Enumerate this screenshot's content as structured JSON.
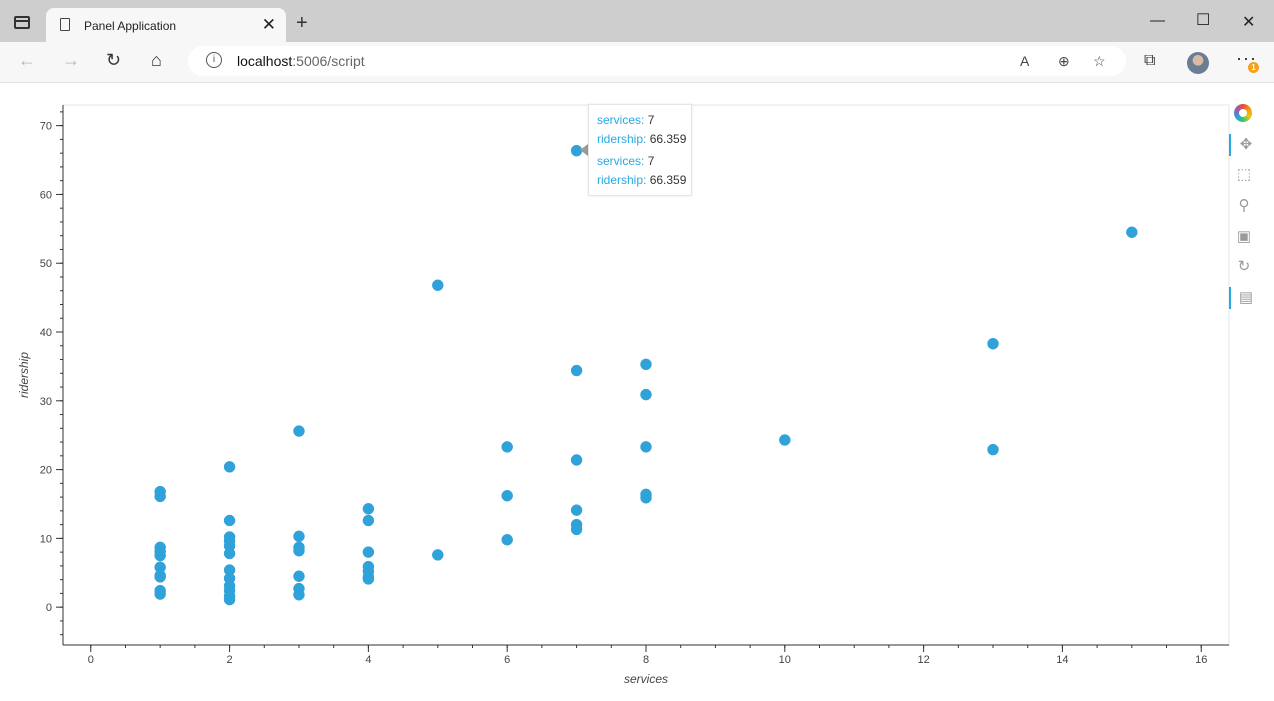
{
  "browser": {
    "tab_title": "Panel Application",
    "url_host": "localhost",
    "url_path": ":5006/script",
    "badge_count": "1"
  },
  "chart_data": {
    "type": "scatter",
    "xlabel": "services",
    "ylabel": "ridership",
    "xlim": [
      -0.4,
      16.4
    ],
    "ylim": [
      -5.5,
      73
    ],
    "x_ticks": [
      0,
      2,
      4,
      6,
      8,
      10,
      12,
      14,
      16
    ],
    "y_ticks": [
      0,
      10,
      20,
      30,
      40,
      50,
      60,
      70
    ],
    "point_color": "#30a2da",
    "grid": false,
    "points": [
      {
        "x": 1,
        "y": 16.8
      },
      {
        "x": 1,
        "y": 16.1
      },
      {
        "x": 1,
        "y": 8.7
      },
      {
        "x": 1,
        "y": 8.1
      },
      {
        "x": 1,
        "y": 7.5
      },
      {
        "x": 1,
        "y": 5.8
      },
      {
        "x": 1,
        "y": 4.6
      },
      {
        "x": 1,
        "y": 4.4
      },
      {
        "x": 1,
        "y": 2.4
      },
      {
        "x": 1,
        "y": 1.9
      },
      {
        "x": 2,
        "y": 20.4
      },
      {
        "x": 2,
        "y": 12.6
      },
      {
        "x": 2,
        "y": 10.2
      },
      {
        "x": 2,
        "y": 9.6
      },
      {
        "x": 2,
        "y": 8.9
      },
      {
        "x": 2,
        "y": 7.8
      },
      {
        "x": 2,
        "y": 5.4
      },
      {
        "x": 2,
        "y": 4.2
      },
      {
        "x": 2,
        "y": 3.1
      },
      {
        "x": 2,
        "y": 2.4
      },
      {
        "x": 2,
        "y": 1.6
      },
      {
        "x": 2,
        "y": 1.1
      },
      {
        "x": 3,
        "y": 25.6
      },
      {
        "x": 3,
        "y": 10.3
      },
      {
        "x": 3,
        "y": 8.7
      },
      {
        "x": 3,
        "y": 8.2
      },
      {
        "x": 3,
        "y": 4.5
      },
      {
        "x": 3,
        "y": 2.7
      },
      {
        "x": 3,
        "y": 1.8
      },
      {
        "x": 4,
        "y": 14.3
      },
      {
        "x": 4,
        "y": 12.6
      },
      {
        "x": 4,
        "y": 8.0
      },
      {
        "x": 4,
        "y": 5.9
      },
      {
        "x": 4,
        "y": 5.2
      },
      {
        "x": 4,
        "y": 4.4
      },
      {
        "x": 4,
        "y": 4.1
      },
      {
        "x": 5,
        "y": 46.8
      },
      {
        "x": 5,
        "y": 7.6
      },
      {
        "x": 6,
        "y": 23.3
      },
      {
        "x": 6,
        "y": 16.2
      },
      {
        "x": 6,
        "y": 9.8
      },
      {
        "x": 7,
        "y": 66.359
      },
      {
        "x": 7,
        "y": 34.4
      },
      {
        "x": 7,
        "y": 21.4
      },
      {
        "x": 7,
        "y": 14.1
      },
      {
        "x": 7,
        "y": 12.0
      },
      {
        "x": 7,
        "y": 11.3
      },
      {
        "x": 8,
        "y": 35.3
      },
      {
        "x": 8,
        "y": 30.9
      },
      {
        "x": 8,
        "y": 23.3
      },
      {
        "x": 8,
        "y": 16.4
      },
      {
        "x": 8,
        "y": 15.9
      },
      {
        "x": 10,
        "y": 24.3
      },
      {
        "x": 13,
        "y": 38.3
      },
      {
        "x": 13,
        "y": 22.9
      },
      {
        "x": 15,
        "y": 54.5
      }
    ]
  },
  "tooltip": {
    "rows": [
      {
        "key": "services:",
        "value": "7"
      },
      {
        "key": "ridership:",
        "value": "66.359"
      },
      {
        "key": "services:",
        "value": "7"
      },
      {
        "key": "ridership:",
        "value": "66.359"
      }
    ]
  },
  "bokeh_toolbar": {
    "tools": [
      "pan-icon",
      "box-zoom-icon",
      "wheel-zoom-icon",
      "save-icon",
      "reset-icon",
      "hover-icon"
    ]
  }
}
